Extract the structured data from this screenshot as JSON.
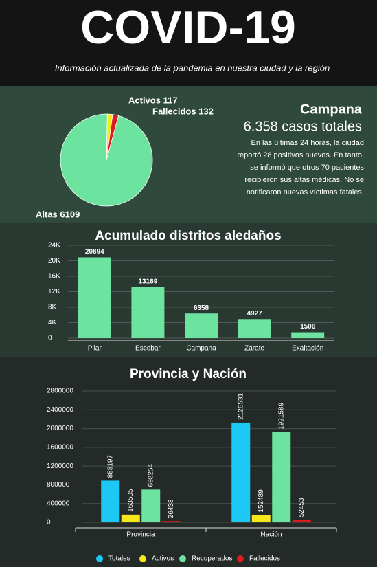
{
  "header": {
    "title": "COVID-19",
    "subtitle": "Información actualizada de la pandemia en nuestra ciudad y la región"
  },
  "summary": {
    "title": "Campana",
    "cases": "6.358 casos totales",
    "text": "En las últimas 24 horas, la ciudad reportó 28 positivos nuevos. En tanto, se informó que otros 70 pacientes recibieron sus altas médicas. No se notificaron nuevas víctimas fatales."
  },
  "chart_data": [
    {
      "type": "pie",
      "categories": [
        "Activos",
        "Fallecidos",
        "Altas"
      ],
      "values": [
        117,
        132,
        6109
      ],
      "value_labels": [
        "Activos 117",
        "Fallecidos 132",
        "Altas 6109"
      ],
      "colors": [
        "#f5e71a",
        "#d91c1c",
        "#6de3a0"
      ]
    },
    {
      "type": "bar",
      "title": "Acumulado distritos aledaños",
      "categories": [
        "Pilar",
        "Escobar",
        "Campana",
        "Zárate",
        "Exaltación"
      ],
      "values": [
        20894,
        13169,
        6358,
        4927,
        1506
      ],
      "color": "#6de3a0",
      "ylim": [
        0,
        24000
      ],
      "yticks": [
        0,
        {
          "value": 4000,
          "label": "4K"
        },
        {
          "value": 8000,
          "label": "8K"
        },
        {
          "value": 12000,
          "label": "12K"
        },
        {
          "value": 16000,
          "label": "16K"
        },
        {
          "value": 20000,
          "label": "20K"
        },
        {
          "value": 24000,
          "label": "24K"
        }
      ],
      "grid": true
    },
    {
      "type": "grouped-bar",
      "title": "Provincia y Nación",
      "categories": [
        "Provincia",
        "Nación"
      ],
      "series": [
        {
          "name": "Totales",
          "color": "#1ec8f5",
          "values": [
            888197,
            2126531
          ]
        },
        {
          "name": "Activos",
          "color": "#f5e71a",
          "values": [
            163505,
            152489
          ]
        },
        {
          "name": "Recuperados",
          "color": "#6de3a0",
          "values": [
            698254,
            1921589
          ]
        },
        {
          "name": "Fallecidos",
          "color": "#d91c1c",
          "values": [
            26438,
            52453
          ]
        }
      ],
      "ylim": [
        0,
        2800000
      ],
      "yticks": [
        0,
        400000,
        800000,
        1200000,
        1600000,
        2000000,
        2400000,
        2800000
      ],
      "grid": true
    }
  ]
}
